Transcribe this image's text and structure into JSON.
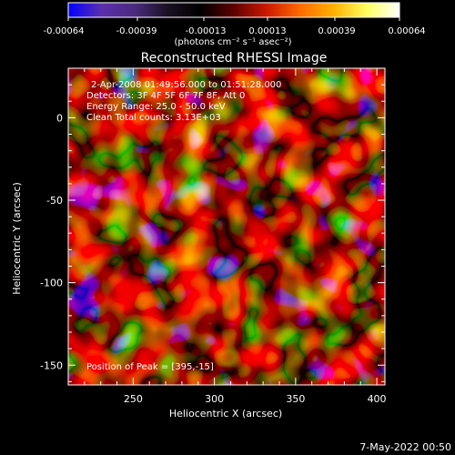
{
  "colorbar": {
    "ticks": [
      "-0.00064",
      "-0.00039",
      "-0.00013",
      "0.00013",
      "0.00039",
      "0.00064"
    ],
    "unit_label": "(photons cm⁻² s⁻¹ asec⁻²)",
    "stops": [
      "#0000ff",
      "#5a2fae",
      "#4b2a7d",
      "#1a1022",
      "#000000",
      "#5e0000",
      "#cc1a00",
      "#ff6a00",
      "#ffb000",
      "#ffff60",
      "#ffffff"
    ]
  },
  "image": {
    "title": "Reconstructed RHESSI Image",
    "info_line1": "2-Apr-2008 01:49:56.000 to 01:51:28.000",
    "info_line2": "Detectors: 3F 4F 5F 6F 7F 8F, Att 0",
    "info_line3": "Energy Range: 25.0 - 50.0 keV",
    "info_line4": "Clean     Total counts: 3.13E+03",
    "peak_label": "Position of Peak = [395,-15]"
  },
  "axes": {
    "xlabel": "Heliocentric X (arcsec)",
    "ylabel": "Heliocentric Y (arcsec)",
    "xlim": [
      210,
      405
    ],
    "ylim": [
      -162,
      30
    ],
    "xticks": [
      250,
      300,
      350,
      400
    ],
    "yticks": [
      0,
      -50,
      -100,
      -150
    ]
  },
  "footer": {
    "timestamp": "7-May-2022 00:50"
  }
}
